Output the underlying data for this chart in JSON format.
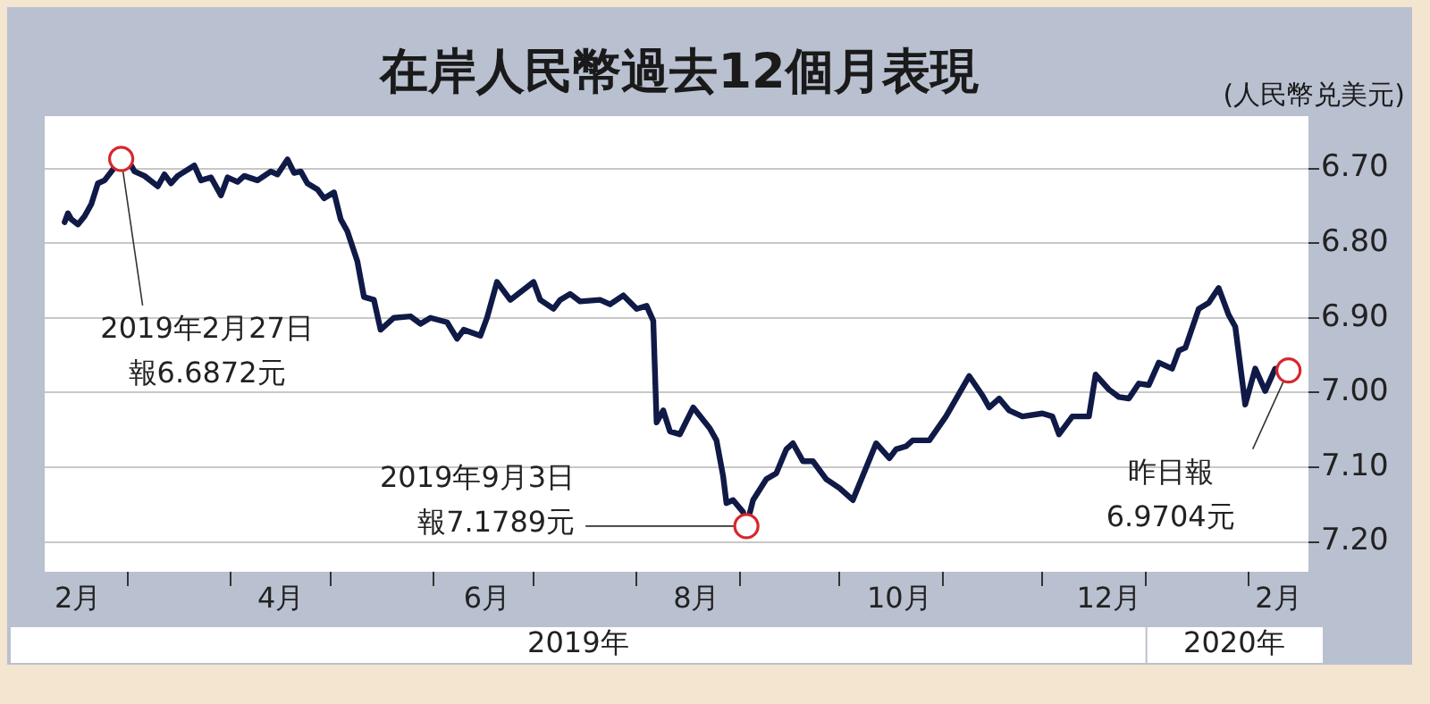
{
  "chart_data": {
    "type": "line",
    "title": "在岸人民幣過去12個月表現",
    "ylabel": "(人民幣兑美元)",
    "x": [
      "2019-02-10",
      "2019-02-11",
      "2019-02-12",
      "2019-02-14",
      "2019-02-16",
      "2019-02-18",
      "2019-02-20",
      "2019-02-22",
      "2019-02-27",
      "2019-03-01",
      "2019-03-03",
      "2019-03-06",
      "2019-03-10",
      "2019-03-12",
      "2019-03-14",
      "2019-03-16",
      "2019-03-21",
      "2019-03-23",
      "2019-03-26",
      "2019-03-29",
      "2019-03-31",
      "2019-04-03",
      "2019-04-05",
      "2019-04-09",
      "2019-04-13",
      "2019-04-15",
      "2019-04-18",
      "2019-04-20",
      "2019-04-22",
      "2019-04-24",
      "2019-04-27",
      "2019-04-29",
      "2019-05-02",
      "2019-05-04",
      "2019-05-06",
      "2019-05-09",
      "2019-05-11",
      "2019-05-14",
      "2019-05-16",
      "2019-05-20",
      "2019-05-25",
      "2019-05-28",
      "2019-05-31",
      "2019-06-05",
      "2019-06-08",
      "2019-06-10",
      "2019-06-15",
      "2019-06-17",
      "2019-06-20",
      "2019-06-24",
      "2019-07-01",
      "2019-07-03",
      "2019-07-07",
      "2019-07-09",
      "2019-07-12",
      "2019-07-15",
      "2019-07-21",
      "2019-07-24",
      "2019-07-28",
      "2019-08-01",
      "2019-08-04",
      "2019-08-06",
      "2019-08-07",
      "2019-08-09",
      "2019-08-11",
      "2019-08-14",
      "2019-08-18",
      "2019-08-23",
      "2019-08-25",
      "2019-08-27",
      "2019-08-28",
      "2019-08-30",
      "2019-09-02",
      "2019-09-03",
      "2019-09-05",
      "2019-09-09",
      "2019-09-12",
      "2019-09-15",
      "2019-09-17",
      "2019-09-20",
      "2019-09-23",
      "2019-09-27",
      "2019-10-01",
      "2019-10-05",
      "2019-10-12",
      "2019-10-16",
      "2019-10-18",
      "2019-10-21",
      "2019-10-23",
      "2019-10-28",
      "2019-11-02",
      "2019-11-09",
      "2019-11-13",
      "2019-11-15",
      "2019-11-18",
      "2019-11-21",
      "2019-11-25",
      "2019-12-01",
      "2019-12-04",
      "2019-12-06",
      "2019-12-10",
      "2019-12-15",
      "2019-12-17",
      "2019-12-21",
      "2019-12-24",
      "2019-12-27",
      "2019-12-30",
      "2020-01-02",
      "2020-01-05",
      "2020-01-09",
      "2020-01-11",
      "2020-01-13",
      "2020-01-17",
      "2020-01-20",
      "2020-01-23",
      "2020-01-26",
      "2020-01-28",
      "2020-01-31",
      "2020-02-03",
      "2020-02-06",
      "2020-02-09",
      "2020-02-13"
    ],
    "series": [
      {
        "color": "#101a47",
        "values": [
          6.772,
          6.76,
          6.768,
          6.775,
          6.764,
          6.748,
          6.72,
          6.716,
          6.6872,
          6.688,
          6.704,
          6.71,
          6.724,
          6.708,
          6.72,
          6.71,
          6.696,
          6.716,
          6.712,
          6.736,
          6.712,
          6.718,
          6.71,
          6.716,
          6.704,
          6.708,
          6.688,
          6.706,
          6.704,
          6.72,
          6.728,
          6.74,
          6.732,
          6.768,
          6.784,
          6.824,
          6.872,
          6.876,
          6.916,
          6.9,
          6.898,
          6.908,
          6.9,
          6.906,
          6.928,
          6.916,
          6.924,
          6.9,
          6.852,
          6.876,
          6.852,
          6.876,
          6.888,
          6.876,
          6.868,
          6.878,
          6.876,
          6.882,
          6.87,
          6.888,
          6.884,
          6.904,
          7.04,
          7.024,
          7.052,
          7.056,
          7.02,
          7.048,
          7.064,
          7.112,
          7.148,
          7.144,
          7.16,
          7.1789,
          7.144,
          7.116,
          7.108,
          7.076,
          7.068,
          7.092,
          7.092,
          7.116,
          7.128,
          7.144,
          7.068,
          7.088,
          7.076,
          7.072,
          7.064,
          7.064,
          7.032,
          6.978,
          7.004,
          7.02,
          7.008,
          7.024,
          7.032,
          7.028,
          7.032,
          7.056,
          7.032,
          7.032,
          6.976,
          6.996,
          7.006,
          7.008,
          6.988,
          6.99,
          6.96,
          6.968,
          6.944,
          6.94,
          6.888,
          6.88,
          6.86,
          6.896,
          6.912,
          7.016,
          6.968,
          6.998,
          6.968,
          6.9704
        ]
      }
    ],
    "xlim": [
      "2019-02-04",
      "2020-02-19"
    ],
    "xticks": [
      {
        "value": "2019-02-14",
        "label": "2月"
      },
      {
        "value": "2019-03-01",
        "label": null
      },
      {
        "value": "2019-04-01",
        "label": null
      },
      {
        "value": "2019-04-16",
        "label": "4月"
      },
      {
        "value": "2019-05-01",
        "label": null
      },
      {
        "value": "2019-06-01",
        "label": null
      },
      {
        "value": "2019-06-17",
        "label": "6月"
      },
      {
        "value": "2019-07-01",
        "label": null
      },
      {
        "value": "2019-08-01",
        "label": null
      },
      {
        "value": "2019-08-19",
        "label": "8月"
      },
      {
        "value": "2019-09-01",
        "label": null
      },
      {
        "value": "2019-10-01",
        "label": null
      },
      {
        "value": "2019-10-19",
        "label": "10月"
      },
      {
        "value": "2019-11-01",
        "label": null
      },
      {
        "value": "2019-12-01",
        "label": null
      },
      {
        "value": "2019-12-21",
        "label": "12月"
      },
      {
        "value": "2020-01-01",
        "label": null
      },
      {
        "value": "2020-02-01",
        "label": null
      },
      {
        "value": "2020-02-10",
        "label": "2月"
      }
    ],
    "ylim": [
      7.24,
      6.63
    ],
    "yticks": [
      {
        "value": 6.7,
        "label": "6.70"
      },
      {
        "value": 6.8,
        "label": "6.80"
      },
      {
        "value": 6.9,
        "label": "6.90"
      },
      {
        "value": 7.0,
        "label": "7.00"
      },
      {
        "value": 7.1,
        "label": "7.10"
      },
      {
        "value": 7.2,
        "label": "7.20"
      }
    ],
    "grid": "y",
    "legend": false,
    "marker": "none",
    "line_style": "solid",
    "annotations": [
      {
        "text": "2019年2月27日報6.6872元",
        "x": "2019-02-27",
        "y": 6.6872
      },
      {
        "text": "2019年9月3日報7.1789元",
        "x": "2019-09-03",
        "y": 7.1789
      },
      {
        "text": "昨日報6.9704元",
        "x": "2020-02-13",
        "y": 6.9704
      },
      "2019年",
      "2020年"
    ]
  }
}
